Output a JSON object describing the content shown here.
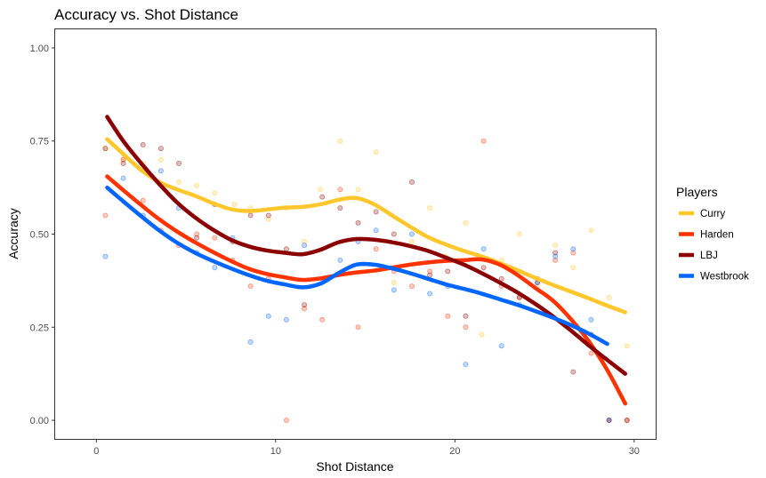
{
  "chart_data": {
    "type": "scatter",
    "title": "Accuracy vs. Shot Distance",
    "xlabel": "Shot Distance",
    "ylabel": "Accuracy",
    "xlim": [
      -2.3,
      31.2
    ],
    "ylim": [
      -0.05,
      1.05
    ],
    "x_ticks": [
      0,
      10,
      20,
      30
    ],
    "y_ticks": [
      0.0,
      0.25,
      0.5,
      0.75,
      1.0
    ],
    "y_tick_labels": [
      "0.00",
      "0.25",
      "0.50",
      "0.75",
      "1.00"
    ],
    "grid": false,
    "legend_title": "Players",
    "legend_position": "right",
    "series": [
      {
        "name": "Curry",
        "color": "#FFC72C",
        "points": [
          [
            0.5,
            0.73
          ],
          [
            1.5,
            0.7
          ],
          [
            2.6,
            0.69
          ],
          [
            3.6,
            0.7
          ],
          [
            4.6,
            0.64
          ],
          [
            5.6,
            0.63
          ],
          [
            6.6,
            0.61
          ],
          [
            7.7,
            0.58
          ],
          [
            8.6,
            0.57
          ],
          [
            9.6,
            0.54
          ],
          [
            10.6,
            0.57
          ],
          [
            11.6,
            0.48
          ],
          [
            12.5,
            0.62
          ],
          [
            13.6,
            0.75
          ],
          [
            14.6,
            0.62
          ],
          [
            15.6,
            0.72
          ],
          [
            16.6,
            0.37
          ],
          [
            17.6,
            0.48
          ],
          [
            18.6,
            0.57
          ],
          [
            19.5,
            0.44
          ],
          [
            20.6,
            0.53
          ],
          [
            21.5,
            0.23
          ],
          [
            22.6,
            0.43
          ],
          [
            23.6,
            0.5
          ],
          [
            24.6,
            0.36
          ],
          [
            25.6,
            0.47
          ],
          [
            26.6,
            0.41
          ],
          [
            27.6,
            0.51
          ],
          [
            28.6,
            0.33
          ],
          [
            29.6,
            0.2
          ]
        ],
        "smooth": [
          [
            0.6,
            0.755
          ],
          [
            1.5,
            0.715
          ],
          [
            2.5,
            0.672
          ],
          [
            3.5,
            0.64
          ],
          [
            4.5,
            0.62
          ],
          [
            5.5,
            0.603
          ],
          [
            6.5,
            0.583
          ],
          [
            7.5,
            0.567
          ],
          [
            8.5,
            0.562
          ],
          [
            9.5,
            0.566
          ],
          [
            10.5,
            0.571
          ],
          [
            11.5,
            0.573
          ],
          [
            12.5,
            0.58
          ],
          [
            13.5,
            0.592
          ],
          [
            14.5,
            0.597
          ],
          [
            15.5,
            0.58
          ],
          [
            16.5,
            0.55
          ],
          [
            17.5,
            0.52
          ],
          [
            18.5,
            0.492
          ],
          [
            19.5,
            0.472
          ],
          [
            20.5,
            0.455
          ],
          [
            21.5,
            0.44
          ],
          [
            22.5,
            0.422
          ],
          [
            23.5,
            0.403
          ],
          [
            24.5,
            0.382
          ],
          [
            25.5,
            0.363
          ],
          [
            26.5,
            0.345
          ],
          [
            27.5,
            0.327
          ],
          [
            28.5,
            0.308
          ],
          [
            29.5,
            0.29
          ]
        ]
      },
      {
        "name": "Harden",
        "color": "#FF3300",
        "points": [
          [
            0.5,
            0.55
          ],
          [
            1.5,
            0.7
          ],
          [
            2.6,
            0.59
          ],
          [
            3.6,
            0.51
          ],
          [
            4.6,
            0.47
          ],
          [
            5.6,
            0.5
          ],
          [
            6.6,
            0.49
          ],
          [
            7.6,
            0.43
          ],
          [
            8.6,
            0.36
          ],
          [
            9.6,
            0.38
          ],
          [
            10.6,
            0.0
          ],
          [
            11.6,
            0.3
          ],
          [
            12.6,
            0.27
          ],
          [
            13.6,
            0.62
          ],
          [
            14.6,
            0.25
          ],
          [
            15.6,
            0.46
          ],
          [
            16.6,
            0.4
          ],
          [
            17.6,
            0.36
          ],
          [
            18.6,
            0.4
          ],
          [
            19.6,
            0.28
          ],
          [
            20.6,
            0.25
          ],
          [
            21.6,
            0.75
          ],
          [
            22.6,
            0.36
          ],
          [
            23.6,
            0.33
          ],
          [
            24.6,
            0.38
          ],
          [
            25.6,
            0.43
          ],
          [
            26.6,
            0.45
          ],
          [
            27.6,
            0.18
          ],
          [
            28.6,
            0.0
          ],
          [
            29.6,
            0.0
          ]
        ],
        "smooth": [
          [
            0.6,
            0.655
          ],
          [
            1.5,
            0.618
          ],
          [
            2.5,
            0.578
          ],
          [
            3.5,
            0.54
          ],
          [
            4.5,
            0.507
          ],
          [
            5.5,
            0.478
          ],
          [
            6.5,
            0.452
          ],
          [
            7.5,
            0.428
          ],
          [
            8.5,
            0.407
          ],
          [
            9.5,
            0.393
          ],
          [
            10.5,
            0.384
          ],
          [
            11.5,
            0.377
          ],
          [
            12.5,
            0.381
          ],
          [
            13.5,
            0.39
          ],
          [
            14.5,
            0.397
          ],
          [
            15.5,
            0.402
          ],
          [
            16.5,
            0.41
          ],
          [
            17.5,
            0.418
          ],
          [
            18.5,
            0.424
          ],
          [
            19.5,
            0.428
          ],
          [
            20.5,
            0.43
          ],
          [
            21.5,
            0.432
          ],
          [
            22.5,
            0.418
          ],
          [
            23.5,
            0.39
          ],
          [
            24.5,
            0.355
          ],
          [
            25.5,
            0.32
          ],
          [
            26.5,
            0.27
          ],
          [
            27.5,
            0.21
          ],
          [
            28.5,
            0.135
          ],
          [
            29.5,
            0.045
          ]
        ]
      },
      {
        "name": "LBJ",
        "color": "#8B0000",
        "points": [
          [
            0.5,
            0.73
          ],
          [
            1.5,
            0.69
          ],
          [
            2.6,
            0.74
          ],
          [
            3.6,
            0.73
          ],
          [
            4.6,
            0.69
          ],
          [
            5.6,
            0.49
          ],
          [
            6.6,
            0.58
          ],
          [
            7.6,
            0.48
          ],
          [
            8.6,
            0.55
          ],
          [
            9.6,
            0.55
          ],
          [
            10.6,
            0.46
          ],
          [
            11.6,
            0.31
          ],
          [
            12.6,
            0.6
          ],
          [
            13.6,
            0.57
          ],
          [
            14.6,
            0.53
          ],
          [
            15.6,
            0.56
          ],
          [
            16.6,
            0.5
          ],
          [
            17.6,
            0.64
          ],
          [
            18.6,
            0.39
          ],
          [
            19.6,
            0.4
          ],
          [
            20.6,
            0.28
          ],
          [
            21.6,
            0.41
          ],
          [
            22.6,
            0.38
          ],
          [
            23.6,
            0.33
          ],
          [
            24.6,
            0.37
          ],
          [
            25.6,
            0.45
          ],
          [
            26.6,
            0.13
          ],
          [
            27.6,
            0.23
          ],
          [
            28.6,
            0.0
          ],
          [
            29.6,
            0.0
          ]
        ],
        "smooth": [
          [
            0.6,
            0.815
          ],
          [
            1.5,
            0.75
          ],
          [
            2.5,
            0.69
          ],
          [
            3.5,
            0.635
          ],
          [
            4.5,
            0.585
          ],
          [
            5.5,
            0.545
          ],
          [
            6.5,
            0.512
          ],
          [
            7.5,
            0.485
          ],
          [
            8.5,
            0.467
          ],
          [
            9.5,
            0.456
          ],
          [
            10.5,
            0.45
          ],
          [
            11.5,
            0.446
          ],
          [
            12.5,
            0.458
          ],
          [
            13.5,
            0.478
          ],
          [
            14.5,
            0.487
          ],
          [
            15.5,
            0.485
          ],
          [
            16.5,
            0.478
          ],
          [
            17.5,
            0.468
          ],
          [
            18.5,
            0.455
          ],
          [
            19.5,
            0.437
          ],
          [
            20.5,
            0.418
          ],
          [
            21.5,
            0.395
          ],
          [
            22.5,
            0.37
          ],
          [
            23.5,
            0.343
          ],
          [
            24.5,
            0.312
          ],
          [
            25.5,
            0.278
          ],
          [
            26.5,
            0.24
          ],
          [
            27.5,
            0.2
          ],
          [
            28.5,
            0.162
          ],
          [
            29.5,
            0.125
          ]
        ]
      },
      {
        "name": "Westbrook",
        "color": "#0066FF",
        "points": [
          [
            0.5,
            0.44
          ],
          [
            1.5,
            0.65
          ],
          [
            2.6,
            0.55
          ],
          [
            3.6,
            0.67
          ],
          [
            4.6,
            0.57
          ],
          [
            5.6,
            0.45
          ],
          [
            6.6,
            0.41
          ],
          [
            7.6,
            0.49
          ],
          [
            8.6,
            0.21
          ],
          [
            9.6,
            0.28
          ],
          [
            10.6,
            0.27
          ],
          [
            11.6,
            0.47
          ],
          [
            12.6,
            0.38
          ],
          [
            13.6,
            0.43
          ],
          [
            14.6,
            0.48
          ],
          [
            15.6,
            0.51
          ],
          [
            16.6,
            0.35
          ],
          [
            17.6,
            0.5
          ],
          [
            18.6,
            0.34
          ],
          [
            19.6,
            0.36
          ],
          [
            20.6,
            0.15
          ],
          [
            21.6,
            0.46
          ],
          [
            22.6,
            0.2
          ],
          [
            23.6,
            0.31
          ],
          [
            24.6,
            0.37
          ],
          [
            25.6,
            0.44
          ],
          [
            26.6,
            0.46
          ],
          [
            27.6,
            0.27
          ],
          [
            28.6,
            0.0
          ]
        ],
        "smooth": [
          [
            0.6,
            0.625
          ],
          [
            1.5,
            0.588
          ],
          [
            2.5,
            0.548
          ],
          [
            3.5,
            0.51
          ],
          [
            4.5,
            0.477
          ],
          [
            5.5,
            0.45
          ],
          [
            6.5,
            0.428
          ],
          [
            7.5,
            0.408
          ],
          [
            8.5,
            0.39
          ],
          [
            9.5,
            0.375
          ],
          [
            10.5,
            0.365
          ],
          [
            11.5,
            0.357
          ],
          [
            12.5,
            0.367
          ],
          [
            13.5,
            0.395
          ],
          [
            14.5,
            0.418
          ],
          [
            15.5,
            0.418
          ],
          [
            16.5,
            0.408
          ],
          [
            17.5,
            0.395
          ],
          [
            18.5,
            0.38
          ],
          [
            19.5,
            0.365
          ],
          [
            20.5,
            0.353
          ],
          [
            21.5,
            0.34
          ],
          [
            22.5,
            0.325
          ],
          [
            23.5,
            0.31
          ],
          [
            24.5,
            0.293
          ],
          [
            25.5,
            0.275
          ],
          [
            26.5,
            0.255
          ],
          [
            27.5,
            0.232
          ],
          [
            28.5,
            0.205
          ]
        ]
      }
    ]
  }
}
